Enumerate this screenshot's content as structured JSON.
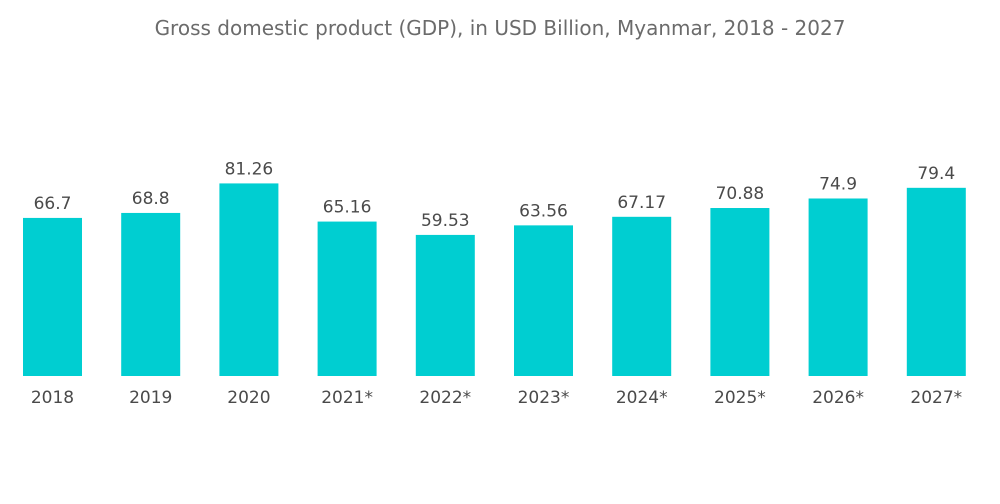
{
  "chart_data": {
    "type": "bar",
    "title": "Gross domestic product (GDP), in USD Billion, Myanmar, 2018 - 2027",
    "xlabel": "",
    "ylabel": "",
    "categories": [
      "2018",
      "2019",
      "2020",
      "2021*",
      "2022*",
      "2023*",
      "2024*",
      "2025*",
      "2026*",
      "2027*"
    ],
    "values": [
      66.7,
      68.8,
      81.26,
      65.16,
      59.53,
      63.56,
      67.17,
      70.88,
      74.9,
      79.4
    ],
    "data_labels": [
      "66.7",
      "68.8",
      "81.26",
      "65.16",
      "59.53",
      "63.56",
      "67.17",
      "70.88",
      "74.9",
      "79.4"
    ],
    "ylim": [
      0,
      85
    ],
    "grid": false,
    "legend": "none",
    "bar_color": "#00CED1"
  }
}
